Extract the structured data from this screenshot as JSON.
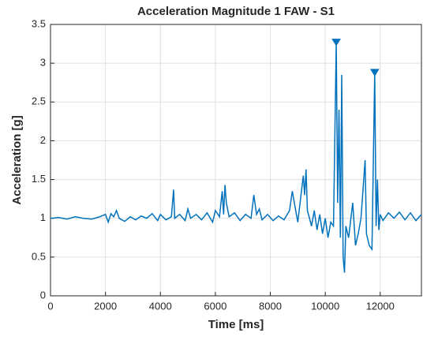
{
  "chart_data": {
    "type": "line",
    "title": "Acceleration Magnitude 1 FAW - S1",
    "x_label": "Time [ms]",
    "y_label": "Acceleration [g]",
    "xlim": [
      0,
      13500
    ],
    "ylim": [
      0,
      3.5
    ],
    "xticks": [
      0,
      2000,
      4000,
      6000,
      8000,
      10000,
      12000
    ],
    "yticks": [
      0,
      0.5,
      1,
      1.5,
      2,
      2.5,
      3,
      3.5
    ],
    "grid": true,
    "series": [
      {
        "color": "#0072bd",
        "x": [
          0,
          300,
          600,
          900,
          1200,
          1500,
          1800,
          2000,
          2100,
          2200,
          2300,
          2400,
          2500,
          2700,
          2900,
          3100,
          3300,
          3500,
          3700,
          3900,
          4000,
          4200,
          4400,
          4480,
          4520,
          4700,
          4900,
          5000,
          5100,
          5300,
          5500,
          5700,
          5900,
          6000,
          6150,
          6250,
          6300,
          6350,
          6400,
          6500,
          6700,
          6900,
          7100,
          7300,
          7400,
          7500,
          7600,
          7700,
          7900,
          8100,
          8300,
          8500,
          8700,
          8800,
          8900,
          9000,
          9200,
          9250,
          9300,
          9350,
          9500,
          9600,
          9700,
          9800,
          9900,
          10000,
          10100,
          10200,
          10300,
          10400,
          10450,
          10500,
          10550,
          10600,
          10650,
          10700,
          10750,
          10850,
          11000,
          11100,
          11200,
          11300,
          11450,
          11500,
          11600,
          11700,
          11800,
          11850,
          11900,
          11950,
          12000,
          12100,
          12300,
          12500,
          12700,
          12900,
          13100,
          13300,
          13500
        ],
        "values": [
          1.0,
          1.01,
          0.99,
          1.02,
          1.0,
          0.99,
          1.02,
          1.05,
          0.95,
          1.06,
          1.02,
          1.1,
          1.0,
          0.96,
          1.02,
          0.98,
          1.03,
          1.0,
          1.06,
          0.97,
          1.05,
          0.98,
          1.02,
          1.37,
          1.0,
          1.05,
          0.97,
          1.12,
          1.0,
          1.05,
          0.98,
          1.07,
          0.95,
          1.1,
          1.02,
          1.35,
          1.05,
          1.43,
          1.2,
          1.02,
          1.07,
          0.97,
          1.05,
          1.0,
          1.3,
          1.05,
          1.12,
          0.98,
          1.05,
          0.97,
          1.03,
          0.98,
          1.1,
          1.35,
          1.15,
          0.95,
          1.55,
          1.3,
          1.63,
          1.1,
          0.9,
          1.1,
          0.85,
          1.05,
          0.8,
          1.0,
          0.75,
          0.95,
          0.9,
          3.27,
          1.2,
          2.4,
          0.75,
          2.85,
          0.5,
          0.3,
          0.9,
          0.75,
          1.2,
          0.65,
          0.8,
          1.0,
          1.75,
          0.8,
          0.65,
          0.6,
          2.88,
          0.9,
          1.5,
          0.85,
          1.05,
          0.97,
          1.07,
          1.0,
          1.08,
          0.98,
          1.07,
          0.97,
          1.05
        ]
      }
    ],
    "peaks": {
      "x": [
        10400,
        11800
      ],
      "values": [
        3.27,
        2.88
      ]
    }
  }
}
